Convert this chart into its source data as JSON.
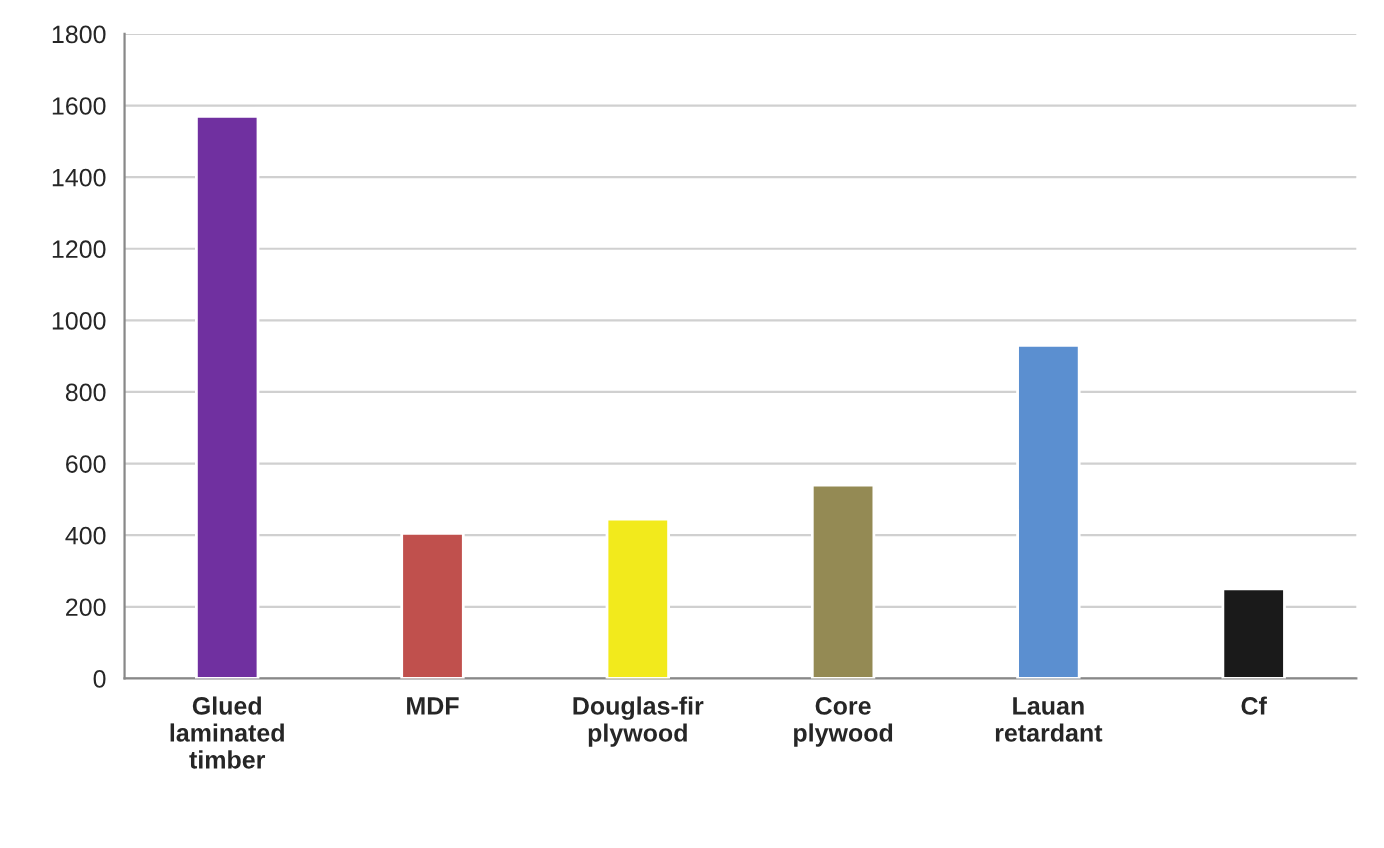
{
  "chart_data": {
    "type": "bar",
    "categories": [
      "Glued\nlaminated\ntimber",
      "MDF",
      "Douglas-fir\nplywood",
      "Core\nplywood",
      "Lauan\nretardant",
      "Cf"
    ],
    "values": [
      1570,
      405,
      445,
      540,
      930,
      250
    ],
    "colors": [
      "#7030a0",
      "#c0504d",
      "#f2ea1c",
      "#948a54",
      "#5b8fd0",
      "#1a1a1a"
    ],
    "ylim": [
      0,
      1800
    ],
    "yticks": [
      0,
      200,
      400,
      600,
      800,
      1000,
      1200,
      1400,
      1600,
      1800
    ],
    "grid": "y",
    "legend": false
  }
}
